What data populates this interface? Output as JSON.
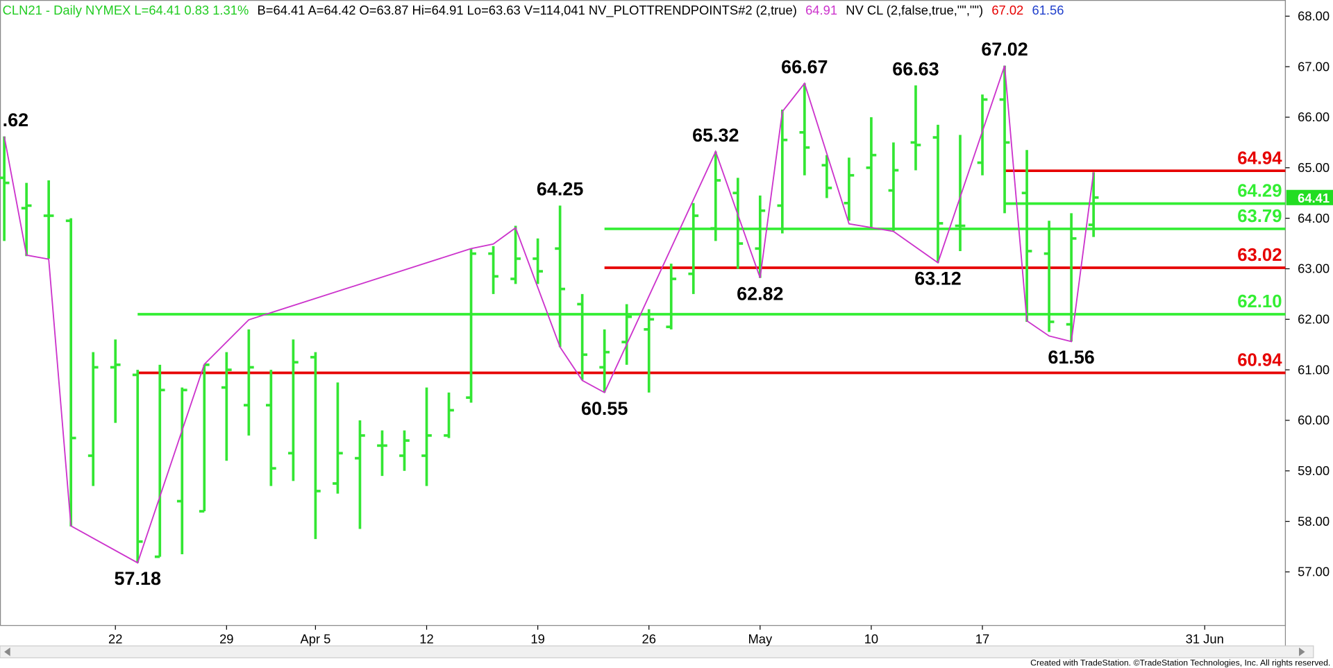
{
  "header": [
    {
      "text": "CLN21 - Daily  NYMEX  L=64.41  0.83  1.31%",
      "color": "#22cc22"
    },
    {
      "text": "B=64.41  A=64.42  O=63.87  Hi=64.91  Lo=63.63  V=114,041  NV_PLOTTRENDPOINTS#2 (2,true)",
      "color": "#000000"
    },
    {
      "text": "64.91",
      "color": "#cc33cc"
    },
    {
      "text": "NV CL (2,false,true,\"\",\"\")",
      "color": "#000000"
    },
    {
      "text": "67.02",
      "color": "#e60000"
    },
    {
      "text": "61.56",
      "color": "#1f3fcc"
    }
  ],
  "footer": "Created with TradeStation. ©TradeStation Technologies, Inc. All rights reserved.",
  "chart_data": {
    "type": "ohlc",
    "color": "#33e633",
    "categories": [
      null,
      null,
      null,
      null,
      null,
      "22",
      null,
      null,
      null,
      null,
      "29",
      null,
      null,
      null,
      "Apr 5",
      null,
      null,
      null,
      null,
      "12",
      null,
      null,
      null,
      null,
      "19",
      null,
      null,
      null,
      null,
      "26",
      null,
      null,
      null,
      null,
      "May",
      null,
      null,
      null,
      null,
      "10",
      null,
      null,
      null,
      null,
      "17",
      null,
      null,
      null,
      null,
      null,
      null,
      null,
      null,
      null,
      "31 Jun",
      null,
      null,
      null
    ],
    "open": [
      64.8,
      64.2,
      64.05,
      63.95,
      59.3,
      61.05,
      60.9,
      57.3,
      58.4,
      58.2,
      60.65,
      60.3,
      60.3,
      59.35,
      61.25,
      58.75,
      59.25,
      59.5,
      59.3,
      59.3,
      59.7,
      60.45,
      63.3,
      62.8,
      63.2,
      63.4,
      62.3,
      61.05,
      61.55,
      61.8,
      61.85,
      62.9,
      63.8,
      64.5,
      63.4,
      64.25,
      65.7,
      65.05,
      64.3,
      65.0,
      64.55,
      65.5,
      65.6,
      63.85,
      65.1,
      66.35,
      64.5,
      63.3,
      61.9,
      63.87,
      null,
      null,
      null,
      null,
      null,
      null,
      null,
      null
    ],
    "high": [
      65.62,
      64.7,
      64.75,
      64.0,
      61.35,
      61.6,
      61.0,
      61.1,
      60.65,
      61.1,
      61.35,
      61.8,
      61.0,
      61.6,
      61.35,
      60.75,
      60.0,
      59.8,
      59.8,
      60.65,
      60.55,
      63.4,
      63.45,
      63.85,
      63.6,
      64.25,
      62.5,
      61.8,
      62.3,
      62.2,
      63.1,
      64.3,
      65.32,
      64.8,
      64.45,
      66.15,
      66.67,
      65.25,
      65.2,
      66.0,
      65.5,
      66.63,
      65.85,
      65.65,
      66.45,
      67.02,
      65.35,
      63.95,
      64.1,
      64.91,
      null,
      null,
      null,
      null,
      null,
      null,
      null,
      null
    ],
    "low": [
      63.55,
      63.25,
      63.2,
      57.9,
      58.7,
      59.95,
      57.18,
      57.3,
      57.35,
      58.2,
      59.2,
      59.7,
      58.7,
      58.8,
      57.65,
      58.55,
      57.85,
      58.9,
      59.0,
      58.7,
      59.65,
      60.35,
      62.5,
      62.7,
      62.7,
      61.45,
      60.8,
      60.55,
      61.1,
      60.55,
      61.8,
      62.5,
      63.55,
      63.0,
      62.82,
      63.7,
      64.85,
      64.4,
      63.95,
      63.8,
      63.75,
      64.95,
      63.12,
      63.35,
      64.85,
      64.1,
      61.95,
      61.75,
      61.56,
      63.63,
      null,
      null,
      null,
      null,
      null,
      null,
      null,
      null
    ],
    "close": [
      64.7,
      64.25,
      64.05,
      59.65,
      61.05,
      61.1,
      57.6,
      60.6,
      60.6,
      61.1,
      61.0,
      61.05,
      59.05,
      61.15,
      58.6,
      59.35,
      59.7,
      59.5,
      59.6,
      59.7,
      60.2,
      63.3,
      62.85,
      63.2,
      62.95,
      62.6,
      61.3,
      61.35,
      62.05,
      62.0,
      62.8,
      64.05,
      64.75,
      63.5,
      64.15,
      65.55,
      65.4,
      64.6,
      64.85,
      65.25,
      64.95,
      65.45,
      63.9,
      63.85,
      66.35,
      65.5,
      63.35,
      61.95,
      63.6,
      64.41,
      null,
      null,
      null,
      null,
      null,
      null,
      null,
      null
    ],
    "ylim": [
      55.94,
      68.32
    ],
    "yticks": [
      {
        "value": 57,
        "label": "57.00"
      },
      {
        "value": 58,
        "label": "58.00"
      },
      {
        "value": 59,
        "label": "59.00"
      },
      {
        "value": 60,
        "label": "60.00"
      },
      {
        "value": 61,
        "label": "61.00"
      },
      {
        "value": 62,
        "label": "62.00"
      },
      {
        "value": 63,
        "label": "63.00"
      },
      {
        "value": 64,
        "label": "64.00"
      },
      {
        "value": 65,
        "label": "65.00"
      },
      {
        "value": 66,
        "label": "66.00"
      },
      {
        "value": 67,
        "label": "67.00"
      },
      {
        "value": 68,
        "label": "68.00"
      }
    ],
    "last_price": 64.41,
    "last_color": "#22dd22",
    "trend": {
      "color": "#cc33cc",
      "x": [
        0,
        1,
        2,
        3,
        6,
        9,
        11,
        21,
        22,
        23,
        25,
        26,
        27,
        32,
        34,
        35,
        36,
        38,
        40,
        42,
        45,
        46,
        47,
        48,
        49
      ],
      "y": [
        65.62,
        63.27,
        63.19,
        57.91,
        57.18,
        61.11,
        61.99,
        63.4,
        63.49,
        63.81,
        61.45,
        60.79,
        60.55,
        65.32,
        62.82,
        66.11,
        66.67,
        63.89,
        63.74,
        63.12,
        67.02,
        61.97,
        61.67,
        61.56,
        64.91
      ]
    },
    "levels": [
      {
        "value": 64.94,
        "label": "64.94",
        "color": "#e60000",
        "from": 45
      },
      {
        "value": 64.29,
        "label": "64.29",
        "color": "#33ee33",
        "from": 45
      },
      {
        "value": 63.79,
        "label": "63.79",
        "color": "#33ee33",
        "from": 27
      },
      {
        "value": 63.02,
        "label": "63.02",
        "color": "#e60000",
        "from": 27
      },
      {
        "value": 62.1,
        "label": "62.10",
        "color": "#33ee33",
        "from": 6
      },
      {
        "value": 60.94,
        "label": "60.94",
        "color": "#e60000",
        "from": 6
      }
    ],
    "annotations": [
      {
        "text": ".62",
        "x": 0,
        "y": 65.62,
        "side": "above"
      },
      {
        "text": "57.18",
        "x": 6,
        "y": 57.18,
        "side": "below"
      },
      {
        "text": "64.25",
        "x": 25,
        "y": 64.25,
        "side": "above"
      },
      {
        "text": "60.55",
        "x": 27,
        "y": 60.55,
        "side": "below"
      },
      {
        "text": "65.32",
        "x": 32,
        "y": 65.32,
        "side": "above"
      },
      {
        "text": "62.82",
        "x": 34,
        "y": 62.82,
        "side": "below"
      },
      {
        "text": "66.67",
        "x": 36,
        "y": 66.67,
        "side": "above"
      },
      {
        "text": "66.63",
        "x": 41,
        "y": 66.63,
        "side": "above"
      },
      {
        "text": "63.12",
        "x": 42,
        "y": 63.12,
        "side": "below"
      },
      {
        "text": "67.02",
        "x": 45,
        "y": 67.02,
        "side": "above"
      },
      {
        "text": "61.56",
        "x": 48,
        "y": 61.56,
        "side": "below"
      }
    ]
  }
}
